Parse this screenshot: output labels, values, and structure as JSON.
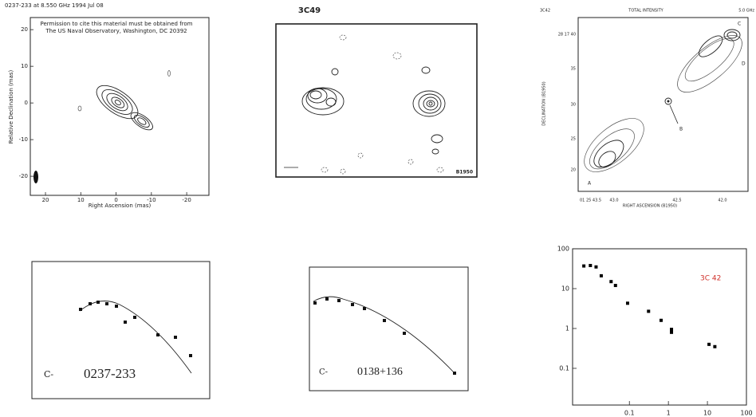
{
  "maps": [
    {
      "header": "0237-233 at 8.550 GHz 1994 Jul 08",
      "note": [
        "Permission to cite this material must be obtained from",
        "The US Naval Observatory, Washington, DC 20392"
      ],
      "xlabel": "Right Ascension  (mas)",
      "ylabel": "Relative Declination  (mas)",
      "xlim": [
        24.3,
        -26.3
      ],
      "ylim": [
        -25.2,
        23.3
      ],
      "xticks": [
        20,
        10,
        0,
        -10,
        -20
      ],
      "yticks": [
        20,
        10,
        0,
        -10,
        -20
      ]
    },
    {
      "title": "3C49",
      "epoch": "B1950"
    },
    {
      "header": [
        "3C42",
        "TOTAL INTENSITY",
        "5.0 GHz"
      ],
      "xlabel": "RIGHT ASCENSION (B1950)",
      "ylabel": "DECLINATION (B1950)",
      "xtick_labels": [
        "01 25 43.5",
        "43.0",
        "42.5",
        "42.0"
      ],
      "ytick_labels": [
        "28 17 40",
        "35",
        "30",
        "25",
        "20"
      ],
      "components": [
        "A",
        "B",
        "C",
        "D"
      ]
    }
  ],
  "chart_data": [
    {
      "type": "spectrum",
      "annotations": [
        "C-",
        "0237-233"
      ]
    },
    {
      "type": "spectrum",
      "annotations": [
        "C-",
        "0138+136"
      ]
    },
    {
      "type": "scatter",
      "title": "3C 42",
      "title_color": "#d0302a",
      "log_x": true,
      "log_y": true,
      "xlim": [
        0.0035,
        100
      ],
      "ylim": [
        0.012,
        100
      ],
      "xticks": [
        0.1,
        1,
        10,
        100
      ],
      "yticks": [
        0.1,
        1,
        10,
        100
      ],
      "color": "#000000",
      "x": [
        0.0068,
        0.01,
        0.014,
        0.019,
        0.034,
        0.044,
        0.09,
        0.31,
        0.65,
        1.2,
        1.2,
        11,
        15.5
      ],
      "values": [
        37,
        38,
        35,
        21,
        15,
        12,
        4.3,
        2.7,
        1.6,
        0.95,
        0.8,
        0.4,
        0.35
      ]
    }
  ]
}
